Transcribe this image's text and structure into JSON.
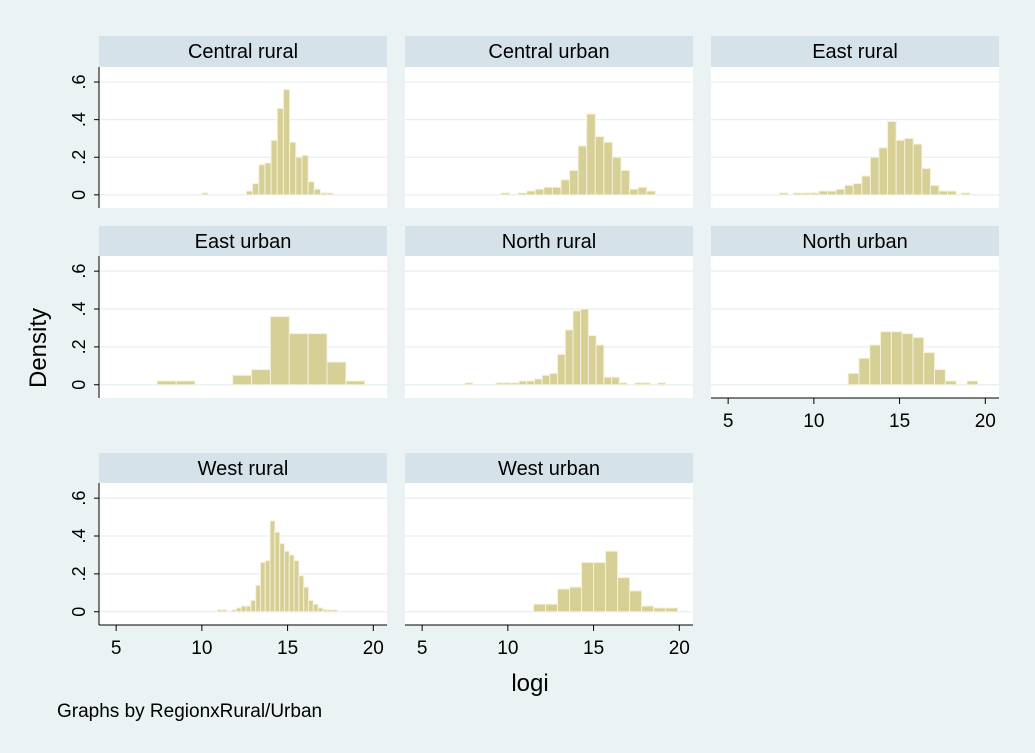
{
  "chart_data": {
    "type": "bar",
    "ylabel": "Density",
    "xlabel": "logi",
    "note": "Graphs by RegionxRural/Urban",
    "xlim": [
      4,
      20.8
    ],
    "ylim": [
      -0.07,
      0.68
    ],
    "xticks": [
      5,
      10,
      15,
      20
    ],
    "yticks": [
      0,
      0.2,
      0.4,
      0.6
    ],
    "ytick_labels": [
      "0",
      ".2",
      ".4",
      ".6"
    ],
    "colors": {
      "bar_fill": "#d6cf96",
      "bar_edge": "#f5f1d9",
      "header": "#d5e2e9",
      "background": "#eaf2f3",
      "plot": "#ffffff",
      "grid": "#e9eff1"
    },
    "panels": [
      {
        "title": "Central rural",
        "bin_width": 0.36,
        "bins": [
          [
            10,
            0.01
          ],
          [
            12.6,
            0.02
          ],
          [
            12.96,
            0.06
          ],
          [
            13.32,
            0.16
          ],
          [
            13.68,
            0.17
          ],
          [
            14.04,
            0.29
          ],
          [
            14.4,
            0.46
          ],
          [
            14.76,
            0.56
          ],
          [
            15.12,
            0.28
          ],
          [
            15.48,
            0.2
          ],
          [
            15.84,
            0.21
          ],
          [
            16.2,
            0.07
          ],
          [
            16.56,
            0.03
          ],
          [
            16.92,
            0.01
          ],
          [
            17.28,
            0.01
          ]
        ]
      },
      {
        "title": "Central urban",
        "bin_width": 0.5,
        "bins": [
          [
            9.6,
            0.01
          ],
          [
            10.6,
            0.01
          ],
          [
            11.1,
            0.02
          ],
          [
            11.6,
            0.03
          ],
          [
            12.1,
            0.04
          ],
          [
            12.6,
            0.04
          ],
          [
            13.1,
            0.08
          ],
          [
            13.6,
            0.13
          ],
          [
            14.1,
            0.26
          ],
          [
            14.6,
            0.43
          ],
          [
            15.1,
            0.31
          ],
          [
            15.6,
            0.28
          ],
          [
            16.1,
            0.2
          ],
          [
            16.6,
            0.13
          ],
          [
            17.1,
            0.03
          ],
          [
            17.6,
            0.04
          ],
          [
            18.1,
            0.02
          ]
        ]
      },
      {
        "title": "East rural",
        "bin_width": 0.5,
        "bins": [
          [
            8,
            0.01
          ],
          [
            8.8,
            0.01
          ],
          [
            9.3,
            0.01
          ],
          [
            9.8,
            0.01
          ],
          [
            10.3,
            0.02
          ],
          [
            10.8,
            0.02
          ],
          [
            11.3,
            0.03
          ],
          [
            11.8,
            0.05
          ],
          [
            12.3,
            0.06
          ],
          [
            12.8,
            0.1
          ],
          [
            13.3,
            0.2
          ],
          [
            13.8,
            0.25
          ],
          [
            14.3,
            0.39
          ],
          [
            14.8,
            0.29
          ],
          [
            15.3,
            0.3
          ],
          [
            15.8,
            0.27
          ],
          [
            16.3,
            0.14
          ],
          [
            16.8,
            0.05
          ],
          [
            17.3,
            0.02
          ],
          [
            17.8,
            0.02
          ],
          [
            18.6,
            0.01
          ]
        ]
      },
      {
        "title": "East urban",
        "bin_width": 1.1,
        "bins": [
          [
            7.4,
            0.02
          ],
          [
            8.5,
            0.02
          ],
          [
            11.8,
            0.05
          ],
          [
            12.9,
            0.08
          ],
          [
            14,
            0.36
          ],
          [
            15.1,
            0.27
          ],
          [
            16.2,
            0.27
          ],
          [
            17.3,
            0.12
          ],
          [
            18.4,
            0.02
          ]
        ]
      },
      {
        "title": "North rural",
        "bin_width": 0.45,
        "bins": [
          [
            7.5,
            0.01
          ],
          [
            9.3,
            0.01
          ],
          [
            9.75,
            0.01
          ],
          [
            10.2,
            0.01
          ],
          [
            10.65,
            0.02
          ],
          [
            11.1,
            0.02
          ],
          [
            11.55,
            0.03
          ],
          [
            12,
            0.05
          ],
          [
            12.45,
            0.06
          ],
          [
            12.9,
            0.16
          ],
          [
            13.35,
            0.29
          ],
          [
            13.8,
            0.39
          ],
          [
            14.25,
            0.4
          ],
          [
            14.7,
            0.26
          ],
          [
            15.15,
            0.21
          ],
          [
            15.6,
            0.04
          ],
          [
            16.05,
            0.04
          ],
          [
            16.5,
            0.01
          ],
          [
            17.4,
            0.01
          ],
          [
            17.85,
            0.01
          ],
          [
            18.75,
            0.01
          ]
        ]
      },
      {
        "title": "North urban",
        "bin_width": 0.63,
        "bins": [
          [
            12,
            0.06
          ],
          [
            12.63,
            0.14
          ],
          [
            13.26,
            0.21
          ],
          [
            13.89,
            0.28
          ],
          [
            14.52,
            0.28
          ],
          [
            15.15,
            0.27
          ],
          [
            15.78,
            0.25
          ],
          [
            16.41,
            0.17
          ],
          [
            17.04,
            0.08
          ],
          [
            17.67,
            0.02
          ],
          [
            18.93,
            0.02
          ]
        ]
      },
      {
        "title": "West rural",
        "bin_width": 0.28,
        "bins": [
          [
            10.9,
            0.01
          ],
          [
            11.18,
            0.01
          ],
          [
            11.74,
            0.01
          ],
          [
            12.02,
            0.02
          ],
          [
            12.3,
            0.03
          ],
          [
            12.58,
            0.03
          ],
          [
            12.86,
            0.06
          ],
          [
            13.14,
            0.14
          ],
          [
            13.42,
            0.26
          ],
          [
            13.7,
            0.27
          ],
          [
            13.98,
            0.48
          ],
          [
            14.26,
            0.42
          ],
          [
            14.54,
            0.36
          ],
          [
            14.82,
            0.32
          ],
          [
            15.1,
            0.3
          ],
          [
            15.38,
            0.27
          ],
          [
            15.66,
            0.19
          ],
          [
            15.94,
            0.13
          ],
          [
            16.22,
            0.06
          ],
          [
            16.5,
            0.04
          ],
          [
            16.78,
            0.02
          ],
          [
            17.06,
            0.01
          ],
          [
            17.34,
            0.01
          ],
          [
            17.62,
            0.01
          ]
        ]
      },
      {
        "title": "West urban",
        "bin_width": 0.7,
        "bins": [
          [
            11.5,
            0.04
          ],
          [
            12.2,
            0.04
          ],
          [
            12.9,
            0.12
          ],
          [
            13.6,
            0.13
          ],
          [
            14.3,
            0.26
          ],
          [
            15,
            0.26
          ],
          [
            15.7,
            0.32
          ],
          [
            16.4,
            0.18
          ],
          [
            17.1,
            0.11
          ],
          [
            17.8,
            0.03
          ],
          [
            18.5,
            0.02
          ],
          [
            19.2,
            0.02
          ]
        ]
      }
    ]
  }
}
